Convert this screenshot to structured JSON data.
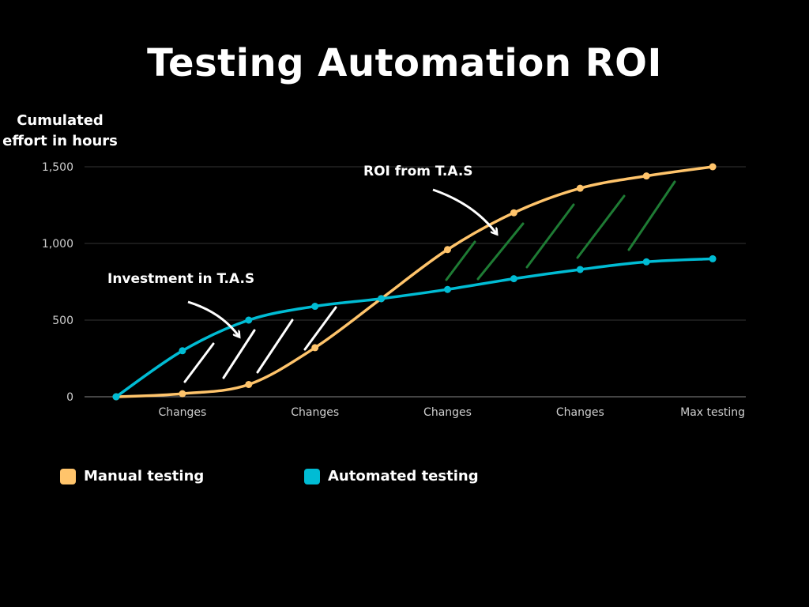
{
  "chart_data": {
    "type": "line",
    "title": "Testing Automation ROI",
    "ylabel": "Cumulated effort in hours",
    "xlabel": "",
    "x_ticks": [
      "Changes",
      "Changes",
      "Changes",
      "Changes",
      "Max testing"
    ],
    "y_ticks": [
      "0",
      "500",
      "1,000",
      "1,500"
    ],
    "ylim": [
      0,
      1500
    ],
    "grid": true,
    "legend_position": "bottom",
    "series": [
      {
        "name": "Manual testing",
        "color": "#FFC46B",
        "values": [
          0,
          20,
          80,
          320,
          640,
          960,
          1200,
          1360,
          1440,
          1500
        ]
      },
      {
        "name": "Automated testing",
        "color": "#00BCD4",
        "values": [
          0,
          300,
          500,
          590,
          640,
          700,
          770,
          830,
          880,
          900
        ]
      }
    ],
    "annotations": [
      {
        "text": "Investment in T.A.S",
        "hatch_color": "#FFFFFF"
      },
      {
        "text": "ROI from T.A.S",
        "hatch_color": "#1E7B34"
      }
    ]
  }
}
